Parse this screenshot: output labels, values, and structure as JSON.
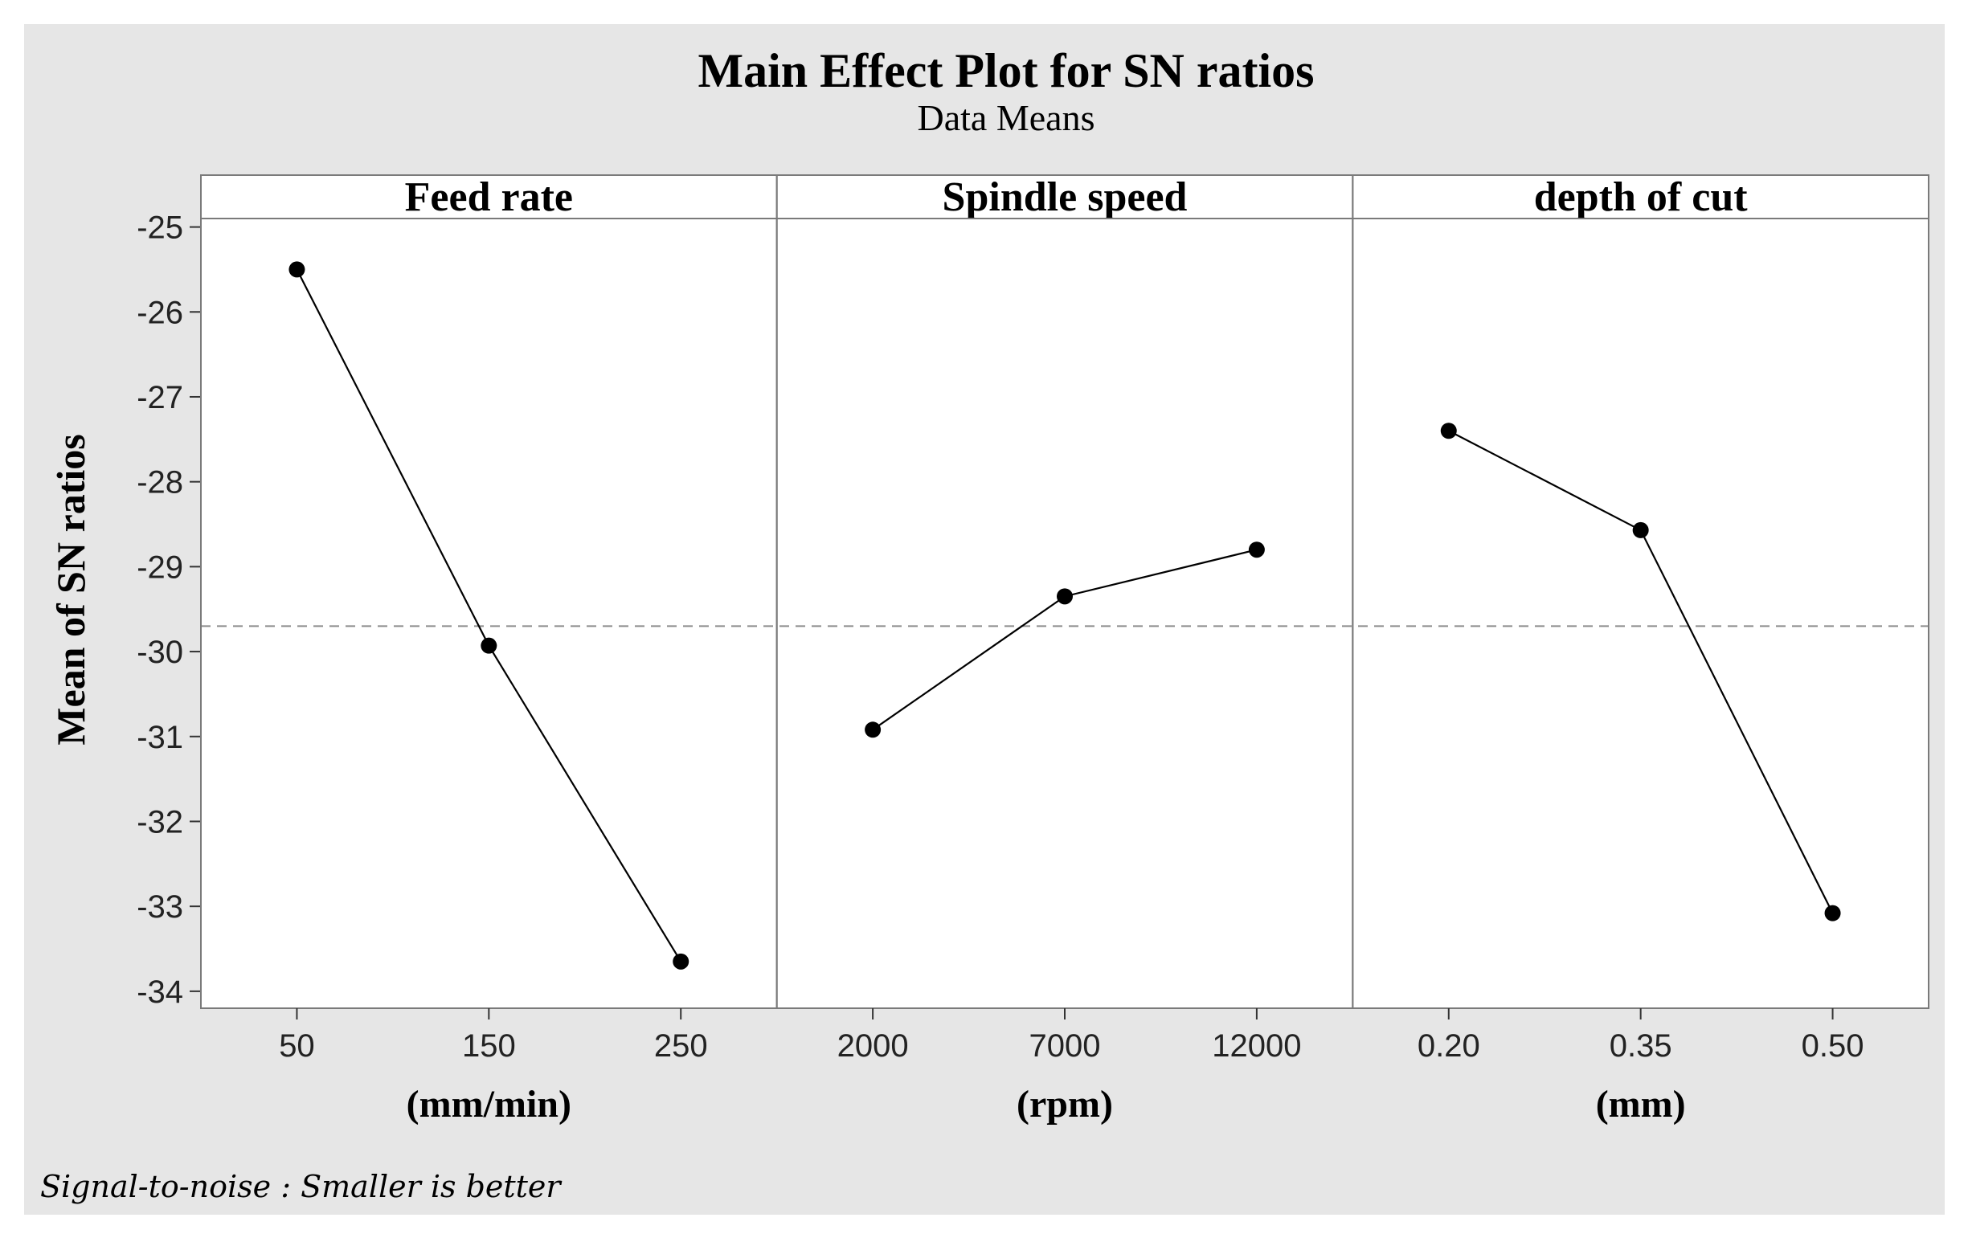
{
  "chart_data": {
    "type": "line",
    "title": "Main Effect Plot for SN ratios",
    "subtitle": "Data Means",
    "ylabel": "Mean of SN ratios",
    "ylim": [
      -34.2,
      -24.9
    ],
    "yticks": [
      -25,
      -26,
      -27,
      -28,
      -29,
      -30,
      -31,
      -32,
      -33,
      -34
    ],
    "reference_line": -29.7,
    "footnote": "Signal-to-noise : Smaller is better",
    "panels": [
      {
        "title": "Feed rate",
        "unit": "(mm/min)",
        "categories": [
          "50",
          "150",
          "250"
        ],
        "values": [
          -25.5,
          -29.93,
          -33.65
        ]
      },
      {
        "title": "Spindle speed",
        "unit": "(rpm)",
        "categories": [
          "2000",
          "7000",
          "12000"
        ],
        "values": [
          -30.92,
          -29.35,
          -28.8
        ]
      },
      {
        "title": "depth of cut",
        "unit": "(mm)",
        "categories": [
          "0.20",
          "0.35",
          "0.50"
        ],
        "values": [
          -27.4,
          -28.57,
          -33.08
        ]
      }
    ],
    "colors": {
      "background": "#e6e6e6",
      "plot": "#ffffff",
      "line": "#000000",
      "reference": "#8c8c8c",
      "frame": "#7a7a7a"
    }
  }
}
